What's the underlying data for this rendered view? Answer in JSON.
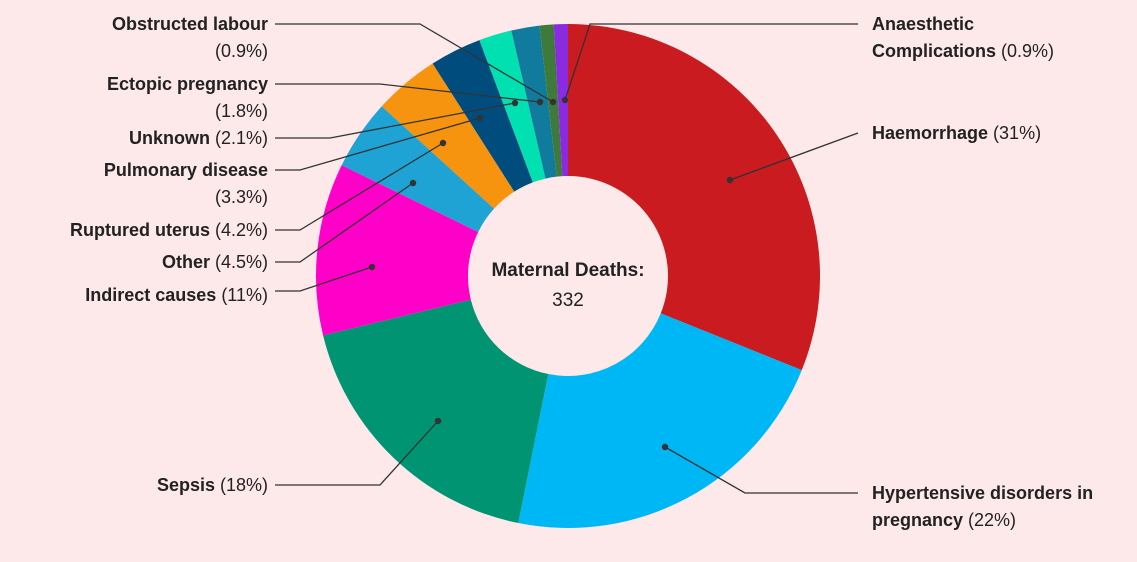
{
  "chart_data": {
    "type": "donut",
    "center_title": "Maternal Deaths:",
    "center_value": "332",
    "categories": [
      "Haemorrhage",
      "Hypertensive disorders in pregnancy",
      "Sepsis",
      "Indirect causes",
      "Other",
      "Ruptured uterus",
      "Pulmonary disease",
      "Unknown",
      "Ectopic pregnancy",
      "Obstructed labour",
      "Anaesthetic Complications"
    ],
    "values": [
      31,
      22,
      18,
      11,
      4.5,
      4.2,
      3.3,
      2.1,
      1.8,
      0.9,
      0.9
    ],
    "value_labels": [
      "(31%)",
      "(22%)",
      "(18%)",
      "(11%)",
      "(4.5%)",
      "(4.2%)",
      "(3.3%)",
      "(2.1%)",
      "(1.8%)",
      "(0.9%)",
      "(0.9%)"
    ],
    "colors": [
      "#c91b20",
      "#00b7f5",
      "#009472",
      "#ff00c8",
      "#1fa3d4",
      "#f7940f",
      "#004d7d",
      "#00e0b0",
      "#107b9c",
      "#3f7a3a",
      "#8a2be2"
    ]
  }
}
